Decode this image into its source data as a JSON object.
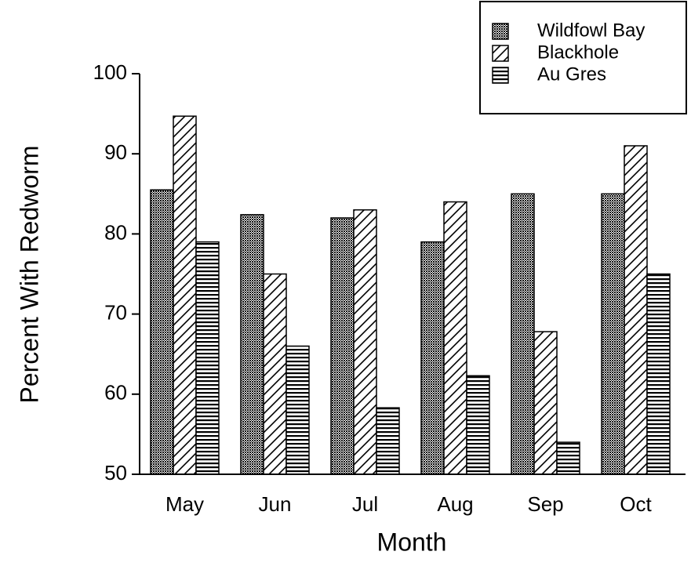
{
  "chart_data": {
    "type": "bar",
    "xlabel": "Month",
    "ylabel": "Percent With Redworm",
    "categories": [
      "May",
      "Jun",
      "Jul",
      "Aug",
      "Sep",
      "Oct"
    ],
    "series": [
      {
        "name": "Wildfowl Bay",
        "color": "#000000",
        "pattern": "dots",
        "values": [
          85.5,
          82.4,
          82,
          79,
          85,
          85
        ]
      },
      {
        "name": "Blackhole",
        "color": "#000000",
        "pattern": "diagonal",
        "values": [
          94.7,
          75,
          83,
          84,
          67.8,
          91
        ]
      },
      {
        "name": "Au Gres",
        "color": "#000000",
        "pattern": "horizontal",
        "values": [
          79,
          66,
          58.3,
          62.3,
          54,
          75
        ]
      }
    ],
    "ylim": [
      50,
      100
    ],
    "yticks": [
      50,
      60,
      70,
      80,
      90,
      100
    ],
    "legend": "upper right"
  }
}
